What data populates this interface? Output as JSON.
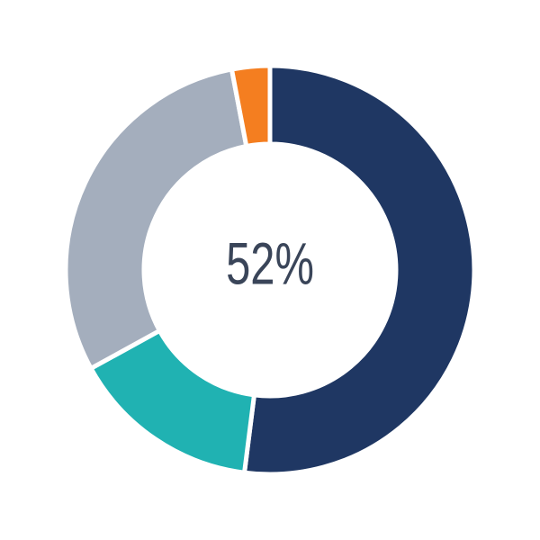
{
  "chart_data": {
    "type": "pie",
    "subtype": "donut",
    "title": "",
    "center_label": "52%",
    "legend": "none",
    "start_angle_deg": 0,
    "direction": "clockwise",
    "slices": [
      {
        "name": "navy",
        "value": 52,
        "color": "#1F3763"
      },
      {
        "name": "teal",
        "value": 15,
        "color": "#20B2B2"
      },
      {
        "name": "gray",
        "value": 30,
        "color": "#A4AEBD"
      },
      {
        "name": "orange",
        "value": 3,
        "color": "#F47E20"
      }
    ],
    "gap_stroke_color": "#FFFFFF",
    "background_color": "#FFFFFF",
    "center_label_color": "#3A4559"
  }
}
